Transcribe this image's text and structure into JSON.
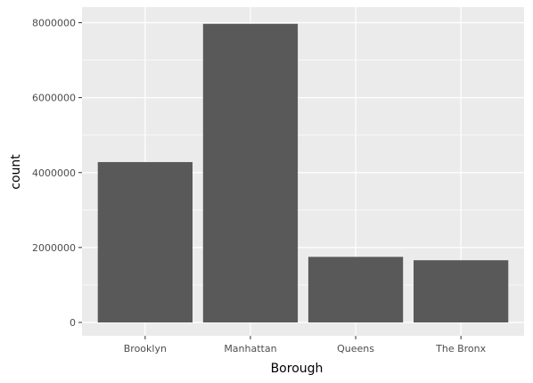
{
  "chart_data": {
    "type": "bar",
    "categories": [
      "Brooklyn",
      "Manhattan",
      "Queens",
      "The Bronx"
    ],
    "values": [
      4280000,
      7970000,
      1750000,
      1660000
    ],
    "xlabel": "Borough",
    "ylabel": "count",
    "ylim": [
      0,
      8400000
    ],
    "yticks": [
      0,
      2000000,
      4000000,
      6000000,
      8000000
    ],
    "ytick_labels": [
      "0",
      "2000000",
      "4000000",
      "6000000",
      "8000000"
    ],
    "grid": true,
    "colors": {
      "panel": "#ebebeb",
      "grid_major": "#ffffff",
      "bar": "#595959",
      "tick": "#333333"
    }
  }
}
